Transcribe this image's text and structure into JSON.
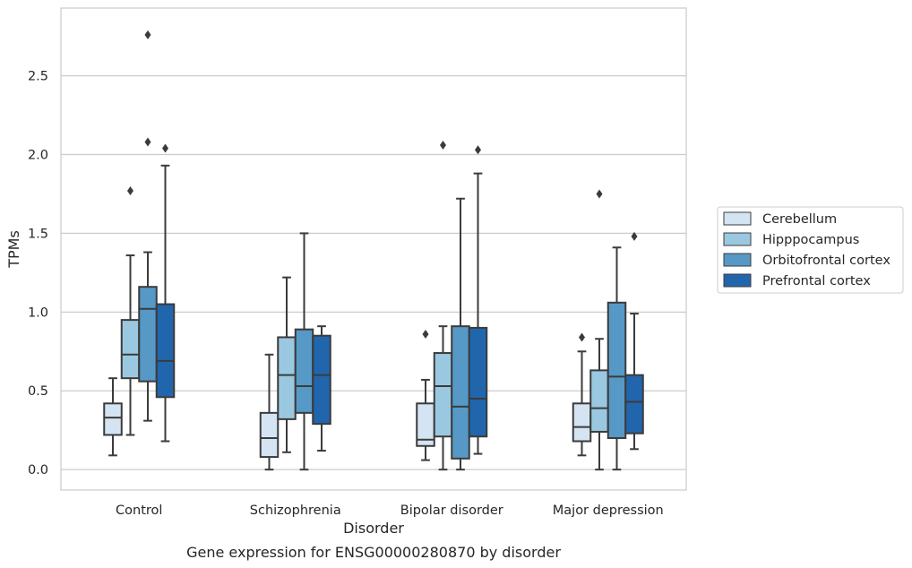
{
  "chart_data": {
    "type": "box",
    "title": "Gene expression for ENSG00000280870 by disorder",
    "xlabel": "Disorder",
    "ylabel": "TPMs",
    "ylim": [
      -0.13,
      2.93
    ],
    "yticks": [
      0.0,
      0.5,
      1.0,
      1.5,
      2.0,
      2.5
    ],
    "ytick_labels": [
      "0.0",
      "0.5",
      "1.0",
      "1.5",
      "2.0",
      "2.5"
    ],
    "grid": "horizontal",
    "legend_position": "right",
    "categories": [
      "Control",
      "Schizophrenia",
      "Bipolar disorder",
      "Major depression"
    ],
    "series": [
      {
        "name": "Cerebellum",
        "color": "#d4e4f3",
        "boxes": [
          {
            "whisker_low": 0.09,
            "q1": 0.22,
            "median": 0.33,
            "q3": 0.42,
            "whisker_high": 0.58,
            "outliers": []
          },
          {
            "whisker_low": 0.0,
            "q1": 0.08,
            "median": 0.2,
            "q3": 0.36,
            "whisker_high": 0.73,
            "outliers": []
          },
          {
            "whisker_low": 0.06,
            "q1": 0.15,
            "median": 0.19,
            "q3": 0.42,
            "whisker_high": 0.57,
            "outliers": [
              0.86
            ]
          },
          {
            "whisker_low": 0.09,
            "q1": 0.18,
            "median": 0.27,
            "q3": 0.42,
            "whisker_high": 0.75,
            "outliers": [
              0.84
            ]
          }
        ]
      },
      {
        "name": "Hipppocampus",
        "color": "#9ac8e0",
        "boxes": [
          {
            "whisker_low": 0.22,
            "q1": 0.58,
            "median": 0.73,
            "q3": 0.95,
            "whisker_high": 1.36,
            "outliers": [
              1.77
            ]
          },
          {
            "whisker_low": 0.11,
            "q1": 0.32,
            "median": 0.6,
            "q3": 0.84,
            "whisker_high": 1.22,
            "outliers": []
          },
          {
            "whisker_low": 0.0,
            "q1": 0.21,
            "median": 0.53,
            "q3": 0.74,
            "whisker_high": 0.91,
            "outliers": [
              2.06
            ]
          },
          {
            "whisker_low": 0.0,
            "q1": 0.24,
            "median": 0.39,
            "q3": 0.63,
            "whisker_high": 0.83,
            "outliers": [
              1.75
            ]
          }
        ]
      },
      {
        "name": "Orbitofrontal cortex",
        "color": "#5699c6",
        "boxes": [
          {
            "whisker_low": 0.31,
            "q1": 0.56,
            "median": 1.02,
            "q3": 1.16,
            "whisker_high": 1.38,
            "outliers": [
              2.08,
              2.76
            ]
          },
          {
            "whisker_low": 0.0,
            "q1": 0.36,
            "median": 0.53,
            "q3": 0.89,
            "whisker_high": 1.5,
            "outliers": []
          },
          {
            "whisker_low": 0.0,
            "q1": 0.07,
            "median": 0.4,
            "q3": 0.91,
            "whisker_high": 1.72,
            "outliers": []
          },
          {
            "whisker_low": 0.0,
            "q1": 0.2,
            "median": 0.59,
            "q3": 1.06,
            "whisker_high": 1.41,
            "outliers": []
          }
        ]
      },
      {
        "name": "Prefrontal cortex",
        "color": "#2166ac",
        "boxes": [
          {
            "whisker_low": 0.18,
            "q1": 0.46,
            "median": 0.69,
            "q3": 1.05,
            "whisker_high": 1.93,
            "outliers": [
              2.04
            ]
          },
          {
            "whisker_low": 0.12,
            "q1": 0.29,
            "median": 0.6,
            "q3": 0.85,
            "whisker_high": 0.91,
            "outliers": []
          },
          {
            "whisker_low": 0.1,
            "q1": 0.21,
            "median": 0.45,
            "q3": 0.9,
            "whisker_high": 1.88,
            "outliers": [
              2.03
            ]
          },
          {
            "whisker_low": 0.13,
            "q1": 0.23,
            "median": 0.43,
            "q3": 0.6,
            "whisker_high": 0.99,
            "outliers": [
              1.48
            ]
          }
        ]
      }
    ]
  }
}
